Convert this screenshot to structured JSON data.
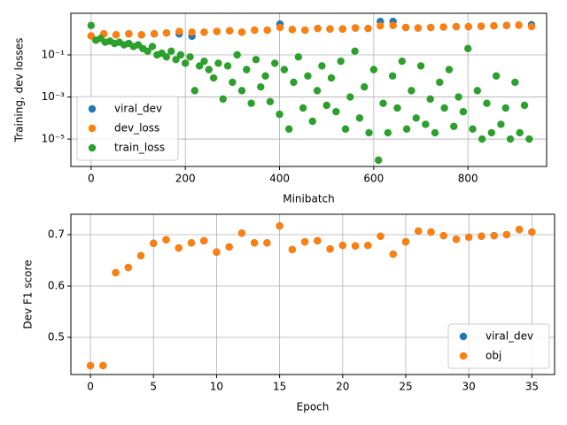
{
  "chart_data": [
    {
      "type": "scatter",
      "xlabel": "Minibatch",
      "ylabel": "Training, dev losses",
      "yscale": "log",
      "xlim": [
        -43,
        967
      ],
      "ylim": [
        5e-07,
        9.5
      ],
      "xticks": [
        0,
        200,
        400,
        600,
        800
      ],
      "yticks": [
        {
          "value": 0.1,
          "label": "10⁻¹"
        },
        {
          "value": 0.001,
          "label": "10⁻³"
        },
        {
          "value": 1e-05,
          "label": "10⁻⁵"
        }
      ],
      "grid": true,
      "legend": "lower left",
      "series": [
        {
          "name": "viral_dev",
          "color": "#1f77b4",
          "x": [
            0,
            27,
            53,
            80,
            107,
            134,
            160,
            187,
            214,
            240,
            267,
            294,
            320,
            347,
            374,
            401,
            427,
            454,
            481,
            507,
            534,
            561,
            588,
            614,
            641,
            668,
            694,
            721,
            748,
            775,
            801,
            828,
            855,
            882,
            908,
            935
          ],
          "values": [
            0.8,
            1.0,
            0.9,
            1.0,
            0.9,
            1.0,
            1.1,
            1.0,
            0.77,
            1.2,
            1.3,
            1.4,
            1.2,
            1.5,
            1.5,
            2.9,
            1.6,
            1.5,
            1.8,
            1.7,
            1.7,
            1.9,
            1.8,
            3.9,
            3.9,
            2.0,
            1.9,
            2.0,
            2.1,
            2.2,
            2.2,
            2.3,
            2.4,
            2.5,
            2.6,
            2.7
          ]
        },
        {
          "name": "dev_loss",
          "color": "#ff7f0e",
          "x": [
            0,
            27,
            53,
            80,
            107,
            134,
            160,
            187,
            214,
            240,
            267,
            294,
            320,
            347,
            374,
            401,
            427,
            454,
            481,
            507,
            534,
            561,
            588,
            614,
            641,
            668,
            694,
            721,
            748,
            775,
            801,
            828,
            855,
            882,
            908,
            935
          ],
          "values": [
            0.8,
            1.0,
            0.9,
            1.0,
            0.9,
            1.0,
            1.1,
            1.3,
            1.2,
            1.2,
            1.3,
            1.4,
            1.2,
            1.5,
            1.5,
            2.0,
            1.6,
            1.5,
            1.8,
            1.7,
            1.7,
            1.9,
            1.8,
            2.4,
            2.5,
            2.0,
            1.9,
            2.0,
            2.1,
            2.2,
            2.2,
            2.3,
            2.4,
            2.5,
            2.6,
            2.2
          ]
        },
        {
          "name": "train_loss",
          "color": "#2ca02c",
          "x": [
            0,
            10,
            20,
            30,
            40,
            50,
            60,
            70,
            80,
            90,
            100,
            110,
            120,
            130,
            140,
            150,
            160,
            170,
            180,
            190,
            200,
            210,
            220,
            230,
            240,
            250,
            260,
            270,
            280,
            290,
            300,
            310,
            320,
            330,
            340,
            350,
            360,
            370,
            380,
            390,
            400,
            410,
            420,
            430,
            440,
            450,
            460,
            470,
            480,
            490,
            500,
            510,
            520,
            530,
            540,
            550,
            560,
            570,
            580,
            590,
            600,
            610,
            620,
            630,
            640,
            650,
            660,
            670,
            680,
            690,
            700,
            710,
            720,
            730,
            740,
            750,
            760,
            770,
            780,
            790,
            800,
            810,
            820,
            830,
            840,
            850,
            860,
            870,
            880,
            890,
            900,
            910,
            920,
            930
          ],
          "values": [
            2.5,
            0.5,
            0.6,
            0.4,
            0.45,
            0.35,
            0.4,
            0.3,
            0.35,
            0.25,
            0.3,
            0.2,
            0.15,
            0.25,
            0.1,
            0.12,
            0.08,
            0.15,
            0.06,
            0.1,
            0.04,
            0.08,
            0.002,
            0.03,
            0.05,
            0.02,
            0.008,
            0.04,
            0.0008,
            0.03,
            0.005,
            0.1,
            0.002,
            0.02,
            0.0005,
            0.06,
            0.003,
            0.01,
            0.0006,
            0.04,
            0.00015,
            0.02,
            3e-05,
            0.005,
            0.08,
            0.0003,
            0.01,
            7e-05,
            0.002,
            0.03,
            0.0004,
            0.008,
            0.0002,
            0.05,
            3e-05,
            0.001,
            0.15,
            0.0001,
            0.003,
            2e-05,
            0.02,
            1e-06,
            0.0005,
            2e-05,
            0.01,
            0.0003,
            0.05,
            3e-05,
            0.002,
            0.0001,
            0.03,
            5e-05,
            0.0008,
            2e-05,
            0.005,
            0.0003,
            0.02,
            4e-05,
            0.001,
            0.0002,
            0.2,
            3e-05,
            0.002,
            1e-05,
            0.0005,
            2e-05,
            0.01,
            5e-05,
            0.0003,
            1e-05,
            0.005,
            2e-05,
            0.0004,
            1e-05
          ]
        }
      ]
    },
    {
      "type": "scatter",
      "xlabel": "Epoch",
      "ylabel": "Dev F1 score",
      "xlim": [
        -1.55,
        36.8
      ],
      "ylim": [
        0.4276,
        0.7397
      ],
      "xticks": [
        0,
        5,
        10,
        15,
        20,
        25,
        30,
        35
      ],
      "yticks": [
        0.5,
        0.6,
        0.7
      ],
      "grid": true,
      "legend": "lower right",
      "x": [
        0,
        1,
        2,
        3,
        4,
        5,
        6,
        7,
        8,
        9,
        10,
        11,
        12,
        13,
        14,
        15,
        16,
        17,
        18,
        19,
        20,
        21,
        22,
        23,
        24,
        25,
        26,
        27,
        28,
        29,
        30,
        31,
        32,
        33,
        34,
        35
      ],
      "series": [
        {
          "name": "viral_dev",
          "color": "#1f77b4",
          "values": [
            0.445,
            0.445,
            0.626,
            0.636,
            0.659,
            0.683,
            0.69,
            0.674,
            0.684,
            0.688,
            0.666,
            0.676,
            0.703,
            0.684,
            0.684,
            0.717,
            0.671,
            0.686,
            0.688,
            0.672,
            0.679,
            0.678,
            0.679,
            0.697,
            0.662,
            0.686,
            0.707,
            0.705,
            0.698,
            0.691,
            0.695,
            0.697,
            0.698,
            0.7,
            0.71,
            0.705
          ]
        },
        {
          "name": "obj",
          "color": "#ff7f0e",
          "values": [
            0.445,
            0.445,
            0.626,
            0.636,
            0.659,
            0.683,
            0.69,
            0.674,
            0.684,
            0.688,
            0.666,
            0.676,
            0.703,
            0.684,
            0.684,
            0.717,
            0.671,
            0.686,
            0.688,
            0.672,
            0.679,
            0.678,
            0.679,
            0.697,
            0.662,
            0.686,
            0.707,
            0.705,
            0.698,
            0.691,
            0.695,
            0.697,
            0.698,
            0.7,
            0.71,
            0.705
          ]
        }
      ]
    }
  ]
}
